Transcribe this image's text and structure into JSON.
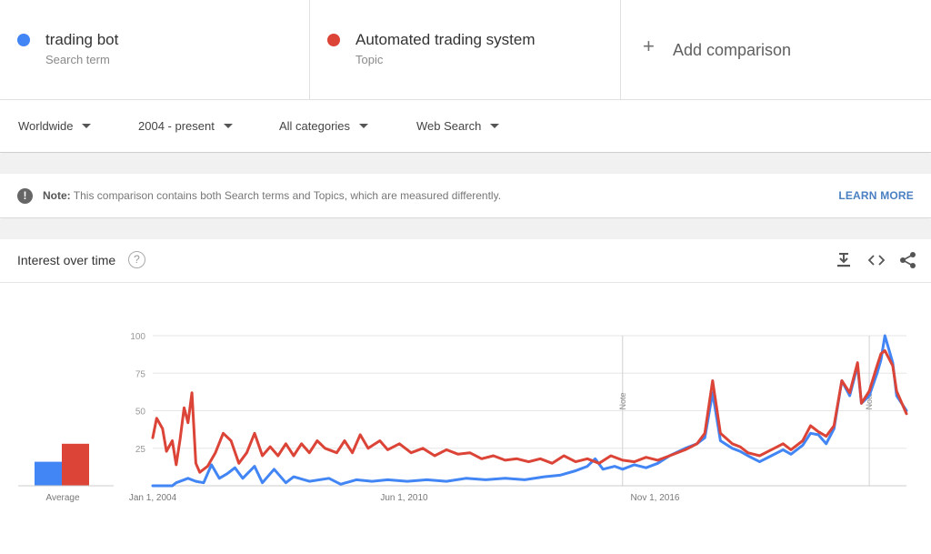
{
  "terms": [
    {
      "name": "trading bot",
      "type": "Search term",
      "color": "#4285f4"
    },
    {
      "name": "Automated trading system",
      "type": "Topic",
      "color": "#db4437"
    }
  ],
  "add_comparison": {
    "plus": "+",
    "label": "Add comparison"
  },
  "filters": {
    "region": "Worldwide",
    "time": "2004 - present",
    "category": "All categories",
    "property": "Web Search"
  },
  "note": {
    "icon": "!",
    "label": "Note:",
    "text": "This comparison contains both Search terms and Topics, which are measured differently.",
    "link": "LEARN MORE"
  },
  "interest": {
    "title": "Interest over time",
    "help": "?"
  },
  "chart_data": {
    "type": "line",
    "title": "",
    "xlabel": "",
    "ylabel": "",
    "ylim": [
      0,
      100
    ],
    "yticks": [
      25,
      50,
      75,
      100
    ],
    "xticks": [
      {
        "label": "Jan 1, 2004",
        "x": 2004.0
      },
      {
        "label": "Jun 1, 2010",
        "x": 2010.42
      },
      {
        "label": "Nov 1, 2016",
        "x": 2016.83
      }
    ],
    "xlim": [
      2004.0,
      2023.25
    ],
    "grid": true,
    "notes": [
      {
        "label": "Note",
        "x": 2016.0
      },
      {
        "label": "Note",
        "x": 2022.3
      }
    ],
    "average": [
      {
        "name": "trading bot",
        "value": 16
      },
      {
        "name": "Automated trading system",
        "value": 28
      }
    ],
    "average_label": "Average",
    "series": [
      {
        "name": "trading bot",
        "color": "#4285f4",
        "points": [
          [
            2004.0,
            0
          ],
          [
            2004.5,
            0
          ],
          [
            2004.6,
            2
          ],
          [
            2004.9,
            5
          ],
          [
            2005.1,
            3
          ],
          [
            2005.3,
            2
          ],
          [
            2005.5,
            14
          ],
          [
            2005.7,
            5
          ],
          [
            2005.9,
            8
          ],
          [
            2006.1,
            12
          ],
          [
            2006.3,
            5
          ],
          [
            2006.6,
            13
          ],
          [
            2006.8,
            2
          ],
          [
            2007.1,
            11
          ],
          [
            2007.4,
            2
          ],
          [
            2007.6,
            6
          ],
          [
            2008.0,
            3
          ],
          [
            2008.5,
            5
          ],
          [
            2008.8,
            1
          ],
          [
            2009.2,
            4
          ],
          [
            2009.6,
            3
          ],
          [
            2010.0,
            4
          ],
          [
            2010.5,
            3
          ],
          [
            2011.0,
            4
          ],
          [
            2011.5,
            3
          ],
          [
            2012.0,
            5
          ],
          [
            2012.5,
            4
          ],
          [
            2013.0,
            5
          ],
          [
            2013.5,
            4
          ],
          [
            2014.0,
            6
          ],
          [
            2014.4,
            7
          ],
          [
            2014.8,
            10
          ],
          [
            2015.1,
            13
          ],
          [
            2015.3,
            18
          ],
          [
            2015.5,
            11
          ],
          [
            2015.8,
            13
          ],
          [
            2016.0,
            11
          ],
          [
            2016.3,
            14
          ],
          [
            2016.6,
            12
          ],
          [
            2016.9,
            15
          ],
          [
            2017.2,
            20
          ],
          [
            2017.6,
            25
          ],
          [
            2017.9,
            28
          ],
          [
            2018.1,
            32
          ],
          [
            2018.3,
            62
          ],
          [
            2018.5,
            30
          ],
          [
            2018.8,
            25
          ],
          [
            2019.0,
            23
          ],
          [
            2019.2,
            20
          ],
          [
            2019.5,
            16
          ],
          [
            2019.8,
            20
          ],
          [
            2020.1,
            24
          ],
          [
            2020.3,
            21
          ],
          [
            2020.6,
            27
          ],
          [
            2020.8,
            35
          ],
          [
            2021.0,
            34
          ],
          [
            2021.2,
            28
          ],
          [
            2021.4,
            38
          ],
          [
            2021.6,
            70
          ],
          [
            2021.8,
            60
          ],
          [
            2022.0,
            80
          ],
          [
            2022.1,
            55
          ],
          [
            2022.3,
            60
          ],
          [
            2022.5,
            75
          ],
          [
            2022.6,
            84
          ],
          [
            2022.7,
            100
          ],
          [
            2022.9,
            82
          ],
          [
            2023.0,
            60
          ],
          [
            2023.1,
            56
          ],
          [
            2023.25,
            50
          ]
        ]
      },
      {
        "name": "Automated trading system",
        "color": "#db4437",
        "points": [
          [
            2004.0,
            32
          ],
          [
            2004.1,
            45
          ],
          [
            2004.25,
            38
          ],
          [
            2004.35,
            23
          ],
          [
            2004.5,
            30
          ],
          [
            2004.6,
            14
          ],
          [
            2004.7,
            31
          ],
          [
            2004.8,
            52
          ],
          [
            2004.9,
            42
          ],
          [
            2005.0,
            62
          ],
          [
            2005.1,
            15
          ],
          [
            2005.2,
            9
          ],
          [
            2005.4,
            13
          ],
          [
            2005.6,
            22
          ],
          [
            2005.8,
            35
          ],
          [
            2006.0,
            30
          ],
          [
            2006.2,
            15
          ],
          [
            2006.4,
            22
          ],
          [
            2006.6,
            35
          ],
          [
            2006.8,
            20
          ],
          [
            2007.0,
            26
          ],
          [
            2007.2,
            20
          ],
          [
            2007.4,
            28
          ],
          [
            2007.6,
            20
          ],
          [
            2007.8,
            28
          ],
          [
            2008.0,
            22
          ],
          [
            2008.2,
            30
          ],
          [
            2008.4,
            25
          ],
          [
            2008.7,
            22
          ],
          [
            2008.9,
            30
          ],
          [
            2009.1,
            22
          ],
          [
            2009.3,
            34
          ],
          [
            2009.5,
            25
          ],
          [
            2009.8,
            30
          ],
          [
            2010.0,
            24
          ],
          [
            2010.3,
            28
          ],
          [
            2010.6,
            22
          ],
          [
            2010.9,
            25
          ],
          [
            2011.2,
            20
          ],
          [
            2011.5,
            24
          ],
          [
            2011.8,
            21
          ],
          [
            2012.1,
            22
          ],
          [
            2012.4,
            18
          ],
          [
            2012.7,
            20
          ],
          [
            2013.0,
            17
          ],
          [
            2013.3,
            18
          ],
          [
            2013.6,
            16
          ],
          [
            2013.9,
            18
          ],
          [
            2014.2,
            15
          ],
          [
            2014.5,
            20
          ],
          [
            2014.8,
            16
          ],
          [
            2015.1,
            18
          ],
          [
            2015.4,
            15
          ],
          [
            2015.7,
            20
          ],
          [
            2016.0,
            17
          ],
          [
            2016.3,
            16
          ],
          [
            2016.6,
            19
          ],
          [
            2016.9,
            17
          ],
          [
            2017.2,
            20
          ],
          [
            2017.6,
            24
          ],
          [
            2017.9,
            28
          ],
          [
            2018.1,
            35
          ],
          [
            2018.3,
            70
          ],
          [
            2018.5,
            35
          ],
          [
            2018.8,
            28
          ],
          [
            2019.0,
            26
          ],
          [
            2019.2,
            22
          ],
          [
            2019.5,
            20
          ],
          [
            2019.8,
            24
          ],
          [
            2020.1,
            28
          ],
          [
            2020.3,
            24
          ],
          [
            2020.6,
            30
          ],
          [
            2020.8,
            40
          ],
          [
            2021.0,
            36
          ],
          [
            2021.2,
            33
          ],
          [
            2021.4,
            40
          ],
          [
            2021.6,
            70
          ],
          [
            2021.8,
            62
          ],
          [
            2022.0,
            82
          ],
          [
            2022.1,
            55
          ],
          [
            2022.3,
            63
          ],
          [
            2022.5,
            80
          ],
          [
            2022.6,
            88
          ],
          [
            2022.7,
            90
          ],
          [
            2022.9,
            80
          ],
          [
            2023.0,
            63
          ],
          [
            2023.1,
            57
          ],
          [
            2023.25,
            48
          ]
        ]
      }
    ]
  }
}
